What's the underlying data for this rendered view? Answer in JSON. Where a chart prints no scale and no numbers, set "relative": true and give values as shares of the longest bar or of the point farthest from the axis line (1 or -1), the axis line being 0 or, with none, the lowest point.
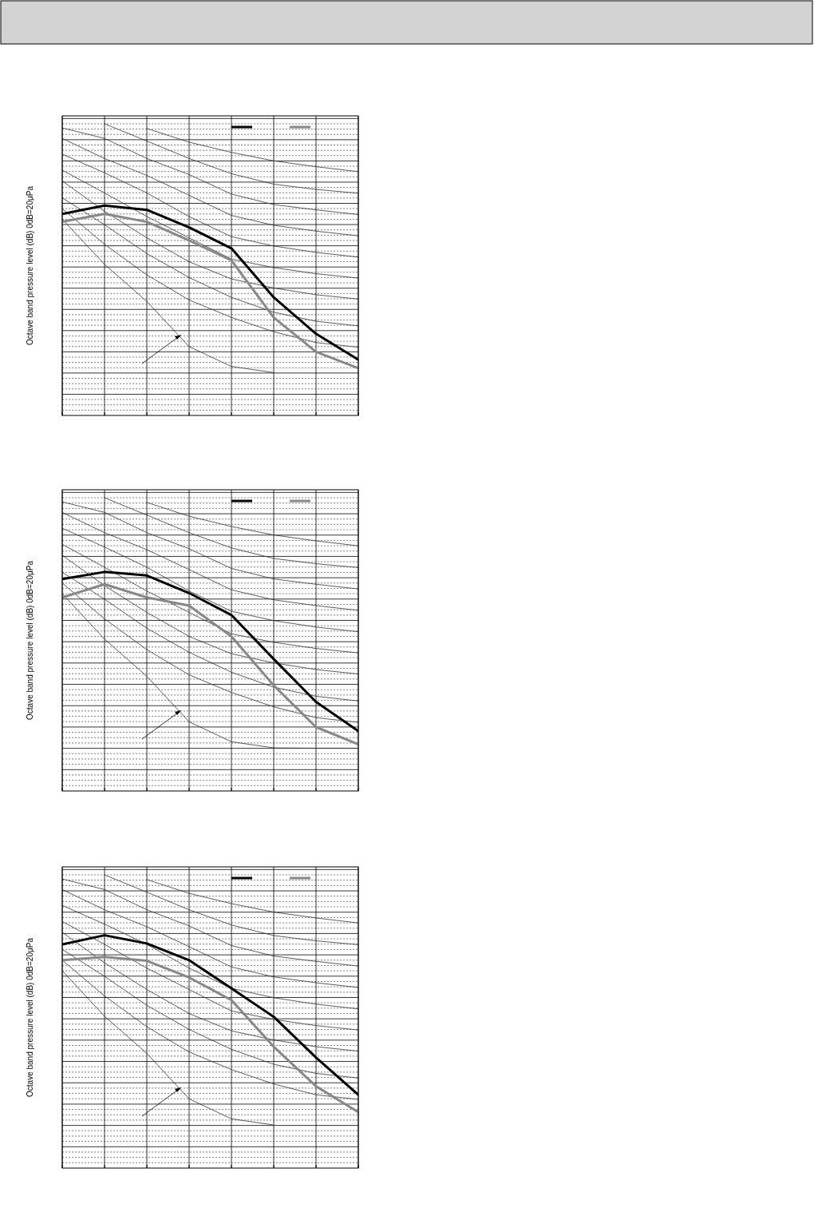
{
  "chart_data": [
    {
      "type": "line",
      "ylabel": "Octave band pressure level (dB) 0dB=20μPa",
      "relative": true,
      "categories": [
        null,
        null,
        null,
        null,
        null,
        null,
        null,
        null
      ],
      "grid": true,
      "marker": "none",
      "line_style": "solid",
      "series": [
        {
          "color": "#000000",
          "values": [
            0.691,
            0.72,
            0.705,
            0.645,
            0.573,
            0.405,
            0.28,
            0.191
          ]
        },
        {
          "color": "#888888",
          "values": [
            0.664,
            0.691,
            0.664,
            0.6,
            0.532,
            0.336,
            0.218,
            0.162
          ]
        },
        {
          "color": "#333333",
          "values": [
            null,
            null,
            0.984,
            0.937,
            0.902,
            0.873,
            0.853,
            0.836
          ]
        },
        {
          "color": "#333333",
          "values": [
            null,
            1.0,
            0.941,
            0.881,
            0.829,
            0.793,
            0.775,
            0.762
          ]
        },
        {
          "color": "#333333",
          "values": [
            0.986,
            0.95,
            0.881,
            0.826,
            0.759,
            0.723,
            0.705,
            0.689
          ]
        },
        {
          "color": "#333333",
          "values": [
            0.95,
            0.881,
            0.823,
            0.755,
            0.686,
            0.652,
            0.632,
            0.616
          ]
        },
        {
          "color": "#333333",
          "values": [
            0.896,
            0.832,
            0.763,
            0.682,
            0.613,
            0.581,
            0.559,
            0.543
          ]
        },
        {
          "color": "#333333",
          "values": [
            0.841,
            0.763,
            0.682,
            0.609,
            0.536,
            0.507,
            0.486,
            0.471
          ]
        },
        {
          "color": "#333333",
          "values": [
            0.804,
            0.7,
            0.609,
            0.527,
            0.468,
            0.437,
            0.414,
            0.399
          ]
        },
        {
          "color": "#333333",
          "values": [
            0.746,
            0.654,
            0.555,
            0.473,
            0.405,
            0.354,
            0.323,
            0.307
          ]
        },
        {
          "color": "#333333",
          "values": [
            0.709,
            0.587,
            0.482,
            0.396,
            0.336,
            0.287,
            0.25,
            0.234
          ]
        },
        {
          "color": "#333333",
          "values": [
            0.673,
            0.518,
            0.391,
            0.236,
            0.168,
            0.147,
            null,
            null
          ]
        }
      ]
    },
    {
      "type": "line",
      "ylabel": "Octave band pressure level (dB) 0dB=20μPa",
      "relative": true,
      "categories": [
        null,
        null,
        null,
        null,
        null,
        null,
        null,
        null
      ],
      "grid": true,
      "marker": "none",
      "line_style": "solid",
      "series": [
        {
          "color": "#000000",
          "values": [
            0.723,
            0.747,
            0.735,
            0.675,
            0.6,
            0.45,
            0.304,
            0.204
          ]
        },
        {
          "color": "#888888",
          "values": [
            0.66,
            0.705,
            0.66,
            0.632,
            0.527,
            0.36,
            0.218,
            0.159
          ]
        },
        {
          "color": "#333333",
          "values": [
            null,
            null,
            0.984,
            0.937,
            0.902,
            0.873,
            0.853,
            0.836
          ]
        },
        {
          "color": "#333333",
          "values": [
            null,
            1.0,
            0.941,
            0.881,
            0.829,
            0.793,
            0.775,
            0.762
          ]
        },
        {
          "color": "#333333",
          "values": [
            0.986,
            0.95,
            0.881,
            0.826,
            0.759,
            0.723,
            0.705,
            0.689
          ]
        },
        {
          "color": "#333333",
          "values": [
            0.95,
            0.881,
            0.823,
            0.755,
            0.686,
            0.652,
            0.632,
            0.616
          ]
        },
        {
          "color": "#333333",
          "values": [
            0.896,
            0.832,
            0.763,
            0.682,
            0.613,
            0.581,
            0.559,
            0.543
          ]
        },
        {
          "color": "#333333",
          "values": [
            0.841,
            0.763,
            0.682,
            0.609,
            0.536,
            0.507,
            0.486,
            0.471
          ]
        },
        {
          "color": "#333333",
          "values": [
            0.804,
            0.7,
            0.609,
            0.527,
            0.468,
            0.437,
            0.414,
            0.399
          ]
        },
        {
          "color": "#333333",
          "values": [
            0.746,
            0.654,
            0.555,
            0.473,
            0.405,
            0.354,
            0.323,
            0.307
          ]
        },
        {
          "color": "#333333",
          "values": [
            0.709,
            0.587,
            0.482,
            0.396,
            0.336,
            0.287,
            0.25,
            0.234
          ]
        },
        {
          "color": "#333333",
          "values": [
            0.673,
            0.518,
            0.391,
            0.236,
            0.168,
            0.147,
            0.146,
            0.146
          ]
        }
      ]
    },
    {
      "type": "line",
      "ylabel": "Octave band pressure level (dB) 0dB=20μPa",
      "relative": true,
      "categories": [
        null,
        null,
        null,
        null,
        null,
        null,
        null,
        null
      ],
      "grid": true,
      "marker": "none",
      "line_style": "solid",
      "series": [
        {
          "color": "#000000",
          "values": [
            0.763,
            0.794,
            0.766,
            0.709,
            0.613,
            0.516,
            0.377,
            0.25
          ]
        },
        {
          "color": "#888888",
          "values": [
            0.709,
            0.72,
            0.707,
            0.65,
            0.573,
            0.414,
            0.279,
            0.191
          ]
        },
        {
          "color": "#333333",
          "values": [
            null,
            null,
            0.984,
            0.937,
            0.902,
            0.873,
            0.853,
            0.836
          ]
        },
        {
          "color": "#333333",
          "values": [
            null,
            1.0,
            0.941,
            0.881,
            0.829,
            0.793,
            0.775,
            0.762
          ]
        },
        {
          "color": "#333333",
          "values": [
            0.986,
            0.95,
            0.881,
            0.826,
            0.759,
            0.723,
            0.705,
            0.689
          ]
        },
        {
          "color": "#333333",
          "values": [
            0.95,
            0.881,
            0.823,
            0.755,
            0.686,
            0.652,
            0.632,
            0.616
          ]
        },
        {
          "color": "#333333",
          "values": [
            0.896,
            0.832,
            0.763,
            0.682,
            0.613,
            0.581,
            0.559,
            0.543
          ]
        },
        {
          "color": "#333333",
          "values": [
            0.841,
            0.763,
            0.682,
            0.609,
            0.536,
            0.507,
            0.486,
            0.471
          ]
        },
        {
          "color": "#333333",
          "values": [
            0.804,
            0.7,
            0.609,
            0.527,
            0.468,
            0.437,
            0.414,
            0.399
          ]
        },
        {
          "color": "#333333",
          "values": [
            0.746,
            0.654,
            0.555,
            0.473,
            0.405,
            0.354,
            0.323,
            0.307
          ]
        },
        {
          "color": "#333333",
          "values": [
            0.709,
            0.587,
            0.482,
            0.396,
            0.336,
            0.287,
            0.25,
            0.234
          ]
        },
        {
          "color": "#333333",
          "values": [
            0.673,
            0.518,
            0.391,
            0.236,
            0.168,
            0.147,
            null,
            null
          ]
        }
      ]
    }
  ]
}
